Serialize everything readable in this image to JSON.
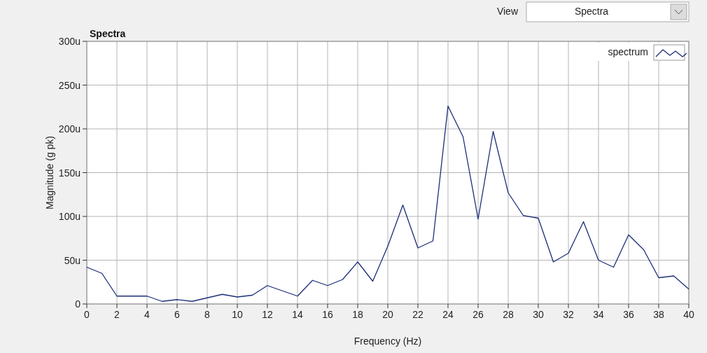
{
  "chart_data": {
    "type": "line",
    "title": "Spectra",
    "xlabel": "Frequency (Hz)",
    "ylabel": "Magnitude (g pk)",
    "annotations": [
      "View",
      "Spectra"
    ],
    "x": [
      0,
      1,
      2,
      3,
      4,
      5,
      6,
      7,
      8,
      9,
      10,
      11,
      12,
      13,
      14,
      15,
      16,
      17,
      18,
      19,
      20,
      21,
      22,
      23,
      24,
      25,
      26,
      27,
      28,
      29,
      30,
      31,
      32,
      33,
      34,
      35,
      36,
      37,
      38,
      39,
      40
    ],
    "series": [
      {
        "name": "spectrum",
        "color": "#1c2e78",
        "values": [
          42,
          35,
          9,
          9,
          9,
          3,
          5,
          3,
          7,
          11,
          8,
          10,
          21,
          15,
          9,
          27,
          21,
          28,
          48,
          26,
          66,
          113,
          64,
          72,
          226,
          191,
          97,
          197,
          127,
          101,
          98,
          48,
          58,
          94,
          50,
          42,
          79,
          62,
          30,
          32,
          17
        ]
      }
    ],
    "xlim": [
      0,
      40
    ],
    "xticks": [
      0,
      2,
      4,
      6,
      8,
      10,
      12,
      14,
      16,
      18,
      20,
      22,
      24,
      26,
      28,
      30,
      32,
      34,
      36,
      38,
      40
    ],
    "ylim": [
      0,
      300
    ],
    "yticks": [
      0,
      {
        "value": 50,
        "label": "50u"
      },
      {
        "value": 100,
        "label": "100u"
      },
      {
        "value": 150,
        "label": "150u"
      },
      {
        "value": 200,
        "label": "200u"
      },
      {
        "value": 250,
        "label": "250u"
      },
      {
        "value": 300,
        "label": "300u"
      }
    ],
    "grid": true,
    "legend": "top right",
    "marker": "none",
    "line_style": "solid"
  }
}
